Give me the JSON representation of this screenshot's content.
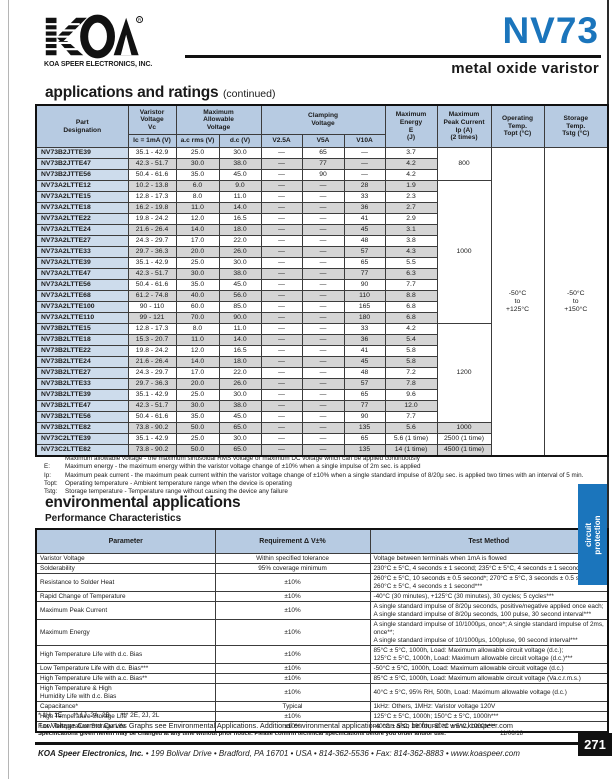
{
  "header": {
    "company": "KOA SPEER ELECTRONICS, INC.",
    "product": "NV73",
    "subtitle": "metal oxide varistor"
  },
  "sections": {
    "ratings_title": "applications and ratings",
    "ratings_continued": "(continued)",
    "env_title": "environmental applications",
    "env_subtitle": "Performance Characteristics"
  },
  "colors": {
    "accent_blue": "#1b75bc",
    "table_header_bg": "#b7cbe2",
    "part_column_bg": "#cddcec",
    "stripe_gray": "#d5d5d5"
  },
  "ratings_table": {
    "headers": {
      "part": "Part\nDesignation",
      "varistor": "Varistor\nVoltage\nVc",
      "varistor_sub": "Ic = 1mA (V)",
      "allowable": "Maximum\nAllowable\nVoltage",
      "ac_sub": "a.c rms (V)",
      "dc_sub": "d.c (V)",
      "clamping": "Clamping\nVoltage",
      "v25_sub": "V2.5A",
      "v5_sub": "V5A",
      "v10_sub": "V10A",
      "energy": "Maximum\nEnergy\nE\n(J)",
      "peak": "Maximum\nPeak Current\nIp (A)\n(2 times)",
      "operating": "Operating\nTemp.\nTopt (°C)",
      "storage": "Storage\nTemp.\nTstg (°C)"
    },
    "rows": [
      [
        "NV73B2JTTE39",
        "35.1 - 42.9",
        "25.0",
        "30.0",
        "—",
        "65",
        "—",
        "3.7"
      ],
      [
        "NV73B2JTTE47",
        "42.3 - 51.7",
        "30.0",
        "38.0",
        "—",
        "77",
        "—",
        "4.2"
      ],
      [
        "NV73B2JTTE56",
        "50.4 - 61.6",
        "35.0",
        "45.0",
        "—",
        "90",
        "—",
        "4.2"
      ],
      [
        "NV73A2LTTE12",
        "10.2 - 13.8",
        "6.0",
        "9.0",
        "—",
        "—",
        "28",
        "1.9"
      ],
      [
        "NV73A2LTTE15",
        "12.8 - 17.3",
        "8.0",
        "11.0",
        "—",
        "—",
        "33",
        "2.3"
      ],
      [
        "NV73A2LTTE18",
        "16.2 - 19.8",
        "11.0",
        "14.0",
        "—",
        "—",
        "36",
        "2.7"
      ],
      [
        "NV73A2LTTE22",
        "19.8 - 24.2",
        "12.0",
        "16.5",
        "—",
        "—",
        "41",
        "2.9"
      ],
      [
        "NV73A2LTTE24",
        "21.6 - 26.4",
        "14.0",
        "18.0",
        "—",
        "—",
        "45",
        "3.1"
      ],
      [
        "NV73A2LTTE27",
        "24.3 - 29.7",
        "17.0",
        "22.0",
        "—",
        "—",
        "48",
        "3.8"
      ],
      [
        "NV73A2LTTE33",
        "29.7 - 36.3",
        "20.0",
        "26.0",
        "—",
        "—",
        "57",
        "4.3"
      ],
      [
        "NV73A2LTTE39",
        "35.1 - 42.9",
        "25.0",
        "30.0",
        "—",
        "—",
        "65",
        "5.5"
      ],
      [
        "NV73A2LTTE47",
        "42.3 - 51.7",
        "30.0",
        "38.0",
        "—",
        "—",
        "77",
        "6.3"
      ],
      [
        "NV73A2LTTE56",
        "50.4 - 61.6",
        "35.0",
        "45.0",
        "—",
        "—",
        "90",
        "7.7"
      ],
      [
        "NV73A2LTTE68",
        "61.2 - 74.8",
        "40.0",
        "56.0",
        "—",
        "—",
        "110",
        "8.8"
      ],
      [
        "NV73A2LTTE100",
        "90 - 110",
        "60.0",
        "85.0",
        "—",
        "—",
        "165",
        "6.8"
      ],
      [
        "NV73A2LTTE110",
        "99 - 121",
        "70.0",
        "90.0",
        "—",
        "—",
        "180",
        "6.8"
      ],
      [
        "NV73B2LTTE15",
        "12.8 - 17.3",
        "8.0",
        "11.0",
        "—",
        "—",
        "33",
        "4.2"
      ],
      [
        "NV73B2LTTE18",
        "15.3 - 20.7",
        "11.0",
        "14.0",
        "—",
        "—",
        "36",
        "5.4"
      ],
      [
        "NV73B2LTTE22",
        "19.8 - 24.2",
        "12.0",
        "16.5",
        "—",
        "—",
        "41",
        "5.8"
      ],
      [
        "NV73B2LTTE24",
        "21.6 - 26.4",
        "14.0",
        "18.0",
        "—",
        "—",
        "45",
        "5.8"
      ],
      [
        "NV73B2LTTE27",
        "24.3 - 29.7",
        "17.0",
        "22.0",
        "—",
        "—",
        "48",
        "7.2"
      ],
      [
        "NV73B2LTTE33",
        "29.7 - 36.3",
        "20.0",
        "26.0",
        "—",
        "—",
        "57",
        "7.8"
      ],
      [
        "NV73B2LTTE39",
        "35.1 - 42.9",
        "25.0",
        "30.0",
        "—",
        "—",
        "65",
        "9.6"
      ],
      [
        "NV73B2LTTE47",
        "42.3 - 51.7",
        "30.0",
        "38.0",
        "—",
        "—",
        "77",
        "12.0"
      ],
      [
        "NV73B2LTTE56",
        "50.4 - 61.6",
        "35.0",
        "45.0",
        "—",
        "—",
        "90",
        "7.7"
      ],
      [
        "NV73B2LTTE82",
        "73.8 - 90.2",
        "50.0",
        "65.0",
        "—",
        "—",
        "135",
        "5.6"
      ],
      [
        "NV73C2LTTE39",
        "35.1 - 42.9",
        "25.0",
        "30.0",
        "—",
        "—",
        "65",
        "5.6 (1 time)"
      ],
      [
        "NV73C2LTTE82",
        "73.8 - 90.2",
        "50.0",
        "65.0",
        "—",
        "—",
        "135",
        "14 (1 time)"
      ]
    ],
    "peak_current_groups": [
      {
        "label": "800",
        "rows": 3
      },
      {
        "label": "1000",
        "rows": 13
      },
      {
        "label": "1200",
        "rows": 9
      },
      {
        "label": "1000",
        "rows": 1
      },
      {
        "label": "2500 (1 time)",
        "rows": 1
      },
      {
        "label": "4500 (1 time)",
        "rows": 1
      }
    ],
    "operating_temp": "-50°C\nto\n+125°C",
    "storage_temp": "-50°C\nto\n+150°C"
  },
  "footnotes": [
    {
      "label": "",
      "text": "Maximum allowable voltage - the maximum sinusoidal RMS voltage or maximum DC voltage which can be applied continuously"
    },
    {
      "label": "E:",
      "text": "Maximum energy - the maximum energy within the varistor voltage change of ±10% when a single impulse of 2m sec. is applied"
    },
    {
      "label": "Ip:",
      "text": "Maximum peak current - the maximum peak current within the varistor voltage change of ±10% when a single standard impulse of 8/20μ sec. is applied two times with an interval of 5 min."
    },
    {
      "label": "Topt:",
      "text": "Operating temperature - Ambient temperature range when the device is operating"
    },
    {
      "label": "Tstg:",
      "text": "Storage temperature - Temperature range without causing the device any failure"
    }
  ],
  "perf_table": {
    "headers": [
      "Parameter",
      "Requirement Δ V±%",
      "Test Method"
    ],
    "rows": [
      {
        "param": "Varistor Voltage",
        "req": "Within specified tolerance",
        "method": "Voltage between terminals when 1mA is flowed"
      },
      {
        "param": "Solderability",
        "req": "95% coverage minimum",
        "method": "230°C ± 5°C, 4 seconds ± 1 second; 235°C ± 5°C, 4 seconds ± 1 second***"
      },
      {
        "param": "Resistance to Solder Heat",
        "req": "±10%",
        "method": "260°C ± 5°C, 10 seconds ± 0.5 second*; 270°C ± 5°C, 3 seconds ± 0.5 second**;\n260°C ± 5°C, 4 seconds ± 1 second***"
      },
      {
        "param": "Rapid Change of Temperature",
        "req": "±10%",
        "method": "-40°C (30 minutes), +125°C (30 minutes), 30 cycles; 5 cycles***"
      },
      {
        "param": "Maximum Peak Current",
        "req": "±10%",
        "method": "A single standard impulse of 8/20μ seconds, positive/negative applied once each;\nA single standard impulse of 8/20μ seconds, 100 pulse, 30 second interval***"
      },
      {
        "param": "Maximum Energy",
        "req": "±10%",
        "method": "A single standard impulse of 10/1000μs, once*; A single standard impulse of 2ms, once**;\nA single standard impulse of 10/1000μs, 100pluse, 90 second interval***"
      },
      {
        "param": "High Temperature Life with d.c. Bias",
        "req": "±10%",
        "method": "85°C ± 5°C, 1000h, Load: Maximum allowable circuit voltage (d.c.);\n125°C ± 5°C, 1000h, Load: Maximum allowable circuit voltage (d.c.)***"
      },
      {
        "param": "Low Temperature Life with d.c. Bias***",
        "req": "±10%",
        "method": "-50°C ± 5°C, 1000h, Load: Maximum allowable circuit voltage (d.c.)"
      },
      {
        "param": "High Temperature Life with a.c. Bias**",
        "req": "±10%",
        "method": "85°C ± 5°C, 1000h, Load: Maximum allowable circuit voltage (Va.c.r.m.s.)"
      },
      {
        "param": "High Temperature & High\nHumidity Life with d.c. Bias",
        "req": "±10%",
        "method": "40°C ± 5°C, 95% RH, 500h, Load: Maximum allowable voltage (d.c.)"
      },
      {
        "param": "Capacitance*",
        "req": "Typical",
        "method": "1kHz: Others, 1MHz: Varistor voltage 120V"
      },
      {
        "param": "High Temperature Storage Life",
        "req": "±10%",
        "method": "125°C ± 5°C, 1000h; 150°C ± 5°C, 1000h***"
      },
      {
        "param": "Low Temperature Storage Life",
        "req": "±10%",
        "method": "-40°C ± 5°C, 1000h; -50°C ± 5°C, 1000h***"
      }
    ]
  },
  "bottom": {
    "legend": "* 1H, 1E      ** 1J, 2A, 2B      *** 2E, 2J, 2L",
    "curves_note": "For Voltage Current Curves Graphs see Environmental Applications. Additional environmental applications can also be found at www.koaspeer.com",
    "disclaimer": "Specifications given herein may be changed at any time without prior notice. Please confirm technical specifications before you order and/or use.",
    "date": "11/06/18"
  },
  "footer": {
    "company": "KOA Speer Electronics, Inc.",
    "address": "  •  199 Bolivar Drive  •  Bradford, PA 16701  •  USA  •  814-362-5536  •  Fax: 814-362-8883  •  www.koaspeer.com",
    "page": "271"
  },
  "side_tab": {
    "line1": "circuit",
    "line2": "protection"
  }
}
